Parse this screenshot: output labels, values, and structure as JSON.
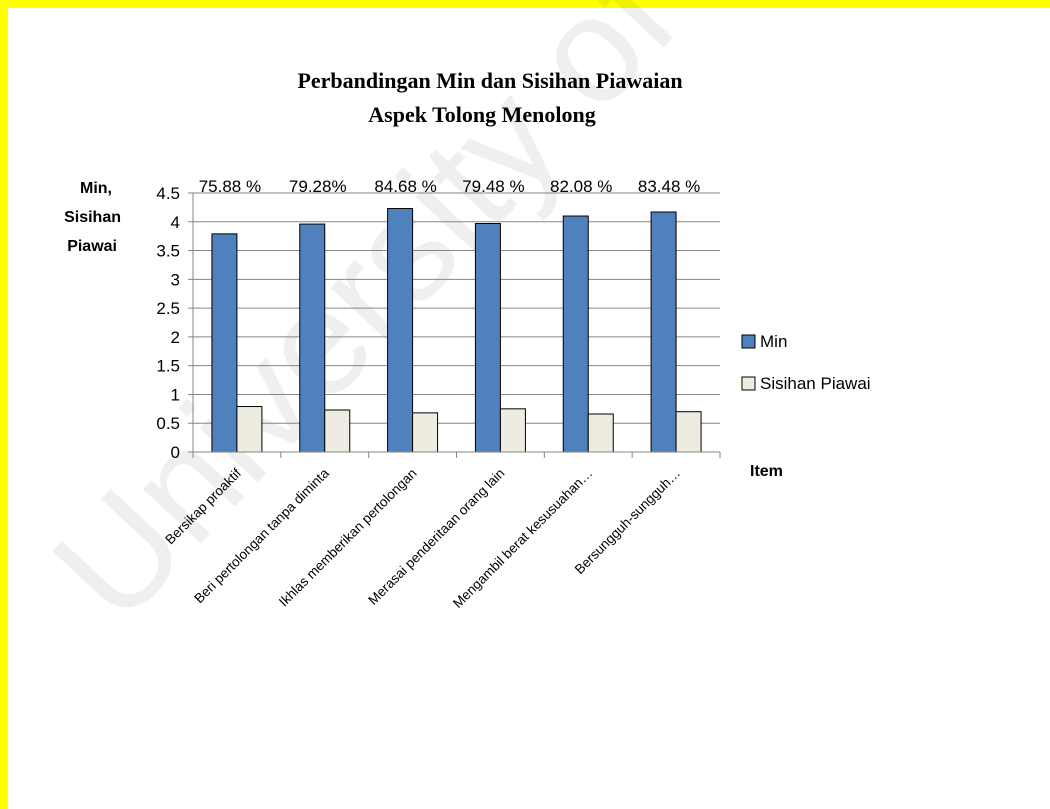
{
  "colors": {
    "border": "#ffff00",
    "min_bar": "#4f81bd",
    "sd_bar": "#eeece1",
    "grid": "#868686"
  },
  "chart_data": {
    "type": "bar",
    "title": "Perbandingan Min dan Sisihan Piawaian",
    "subtitle": "Aspek Tolong Menolong",
    "ylabel_lines": [
      "Min,",
      "Sisihan",
      "Piawai"
    ],
    "xlabel": "Item",
    "ylim": [
      0,
      4.5
    ],
    "yticks": [
      "0",
      "0.5",
      "1",
      "1.5",
      "2",
      "2.5",
      "3",
      "3.5",
      "4",
      "4.5"
    ],
    "grid": true,
    "legend_position": "right",
    "categories": [
      "Bersikap proaktif",
      "Beri pertolongan tanpa diminta",
      "Ikhlas memberikan pertolongan",
      "Merasai penderitaan orang lain",
      "Mengambil berat kesusuahan…",
      "Bersungguh-sungguh…"
    ],
    "series": [
      {
        "name": "Min",
        "color": "#4f81bd",
        "values": [
          3.79,
          3.96,
          4.23,
          3.97,
          4.1,
          4.17
        ]
      },
      {
        "name": "Sisihan Piawai",
        "color": "#eeece1",
        "values": [
          0.79,
          0.73,
          0.68,
          0.75,
          0.66,
          0.7
        ]
      }
    ],
    "data_labels": [
      "75.88 %",
      "79.28%",
      "84.68 %",
      "79.48 %",
      "82.08 %",
      "83.48 %"
    ]
  },
  "watermark": "University of"
}
